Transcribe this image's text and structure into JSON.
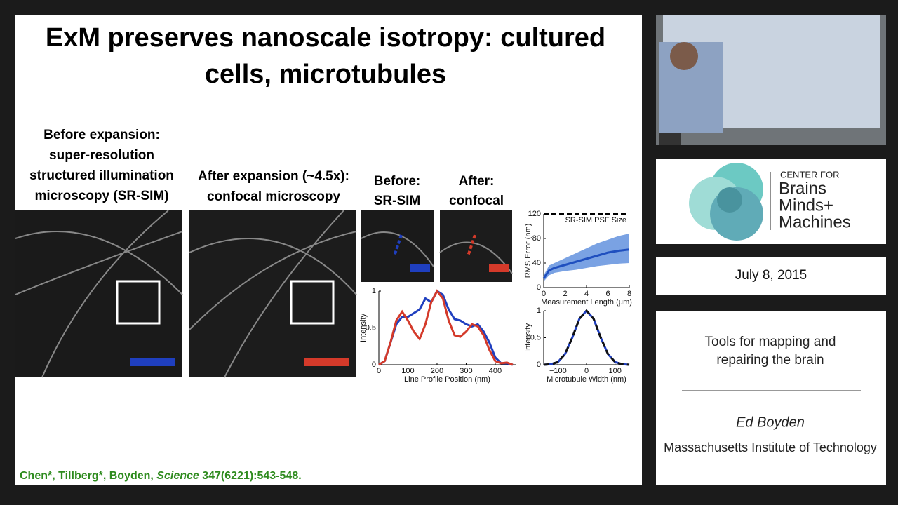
{
  "slide": {
    "title_lines": [
      "ExM preserves nanoscale isotropy: cultured",
      "cells, microtubules"
    ],
    "before_label": [
      "Before expansion:",
      "super-resolution",
      "structured illumination",
      "microscopy (SR-SIM)"
    ],
    "after_label": [
      "After expansion (~4.5x):",
      "confocal microscopy"
    ],
    "before_small": [
      "Before:",
      "SR-SIM"
    ],
    "after_small": [
      "After:",
      "confocal"
    ],
    "citation": {
      "authors": "Chen*, Tillberg*, Boyden, ",
      "journal": "Science",
      "ref": " 347(6221):543-548."
    },
    "plots": [
      {
        "type": "line",
        "xlabel": "Line Profile Position (nm)",
        "ylabel": "Intensity",
        "xlim": [
          0,
          470
        ],
        "ylim": [
          0,
          1
        ],
        "xticks": [
          0,
          100,
          200,
          300,
          400
        ],
        "yticks": [
          0,
          0.5,
          1
        ],
        "x": [
          0,
          20,
          40,
          60,
          80,
          100,
          120,
          140,
          160,
          180,
          200,
          220,
          240,
          260,
          280,
          300,
          320,
          340,
          360,
          380,
          400,
          420,
          440,
          460
        ],
        "series": [
          {
            "color": "#1f3fbf",
            "values": [
              0,
              0.05,
              0.3,
              0.55,
              0.65,
              0.65,
              0.7,
              0.75,
              0.9,
              0.85,
              1.0,
              0.95,
              0.75,
              0.62,
              0.6,
              0.55,
              0.52,
              0.55,
              0.45,
              0.3,
              0.1,
              0.02,
              0.02,
              0
            ]
          },
          {
            "color": "#d43a2a",
            "values": [
              0,
              0.05,
              0.3,
              0.6,
              0.72,
              0.6,
              0.45,
              0.35,
              0.55,
              0.85,
              1.0,
              0.9,
              0.6,
              0.4,
              0.38,
              0.45,
              0.55,
              0.52,
              0.4,
              0.2,
              0.05,
              0.02,
              0.03,
              0
            ]
          }
        ]
      },
      {
        "type": "band",
        "xlabel": "Measurement Length (µm)",
        "ylabel": "RMS Error (nm)",
        "xlim": [
          0,
          8
        ],
        "ylim": [
          0,
          120
        ],
        "xticks": [
          0,
          2,
          4,
          6,
          8
        ],
        "yticks": [
          0,
          40,
          80,
          120
        ],
        "reference": {
          "value": 120,
          "label": "SR-SIM PSF Size"
        },
        "x": [
          0,
          0.5,
          1,
          2,
          3,
          4,
          5,
          6,
          7,
          8
        ],
        "series": [
          {
            "color": "#1f4fbf",
            "band_color": "#7aa2e3",
            "values": [
              15,
              28,
              32,
              37,
              42,
              47,
              52,
              57,
              60,
              62
            ],
            "lower": [
              10,
              20,
              24,
              27,
              29,
              32,
              35,
              37,
              39,
              40
            ],
            "upper": [
              20,
              36,
              40,
              48,
              56,
              64,
              72,
              78,
              84,
              88
            ]
          }
        ]
      },
      {
        "type": "line",
        "xlabel": "Microtubule Width (nm)",
        "ylabel": "Intensity",
        "xlim": [
          -150,
          150
        ],
        "ylim": [
          0,
          1
        ],
        "xticks": [
          {
            "value": -100,
            "label": "−100"
          },
          0,
          100
        ],
        "yticks": [
          0,
          0.5,
          1
        ],
        "x": [
          -150,
          -125,
          -100,
          -75,
          -50,
          -25,
          0,
          25,
          50,
          75,
          100,
          125,
          150
        ],
        "series": [
          {
            "color": "#1f3fbf",
            "values": [
              0,
              0.01,
              0.05,
              0.2,
              0.5,
              0.85,
              1.0,
              0.85,
              0.5,
              0.2,
              0.05,
              0.01,
              0
            ]
          },
          {
            "color": "#111",
            "dashed": true,
            "values": [
              0,
              0.01,
              0.05,
              0.2,
              0.5,
              0.85,
              1.0,
              0.85,
              0.5,
              0.2,
              0.05,
              0.01,
              0
            ]
          }
        ]
      }
    ]
  },
  "sidebar": {
    "logo": [
      "CENTER FOR",
      "Brains",
      "Minds+",
      "Machines"
    ],
    "date": "July 8, 2015",
    "talk_title": [
      "Tools for mapping and",
      "repairing the brain"
    ],
    "speaker": "Ed Boyden",
    "affiliation": "Massachusetts Institute of Technology"
  }
}
